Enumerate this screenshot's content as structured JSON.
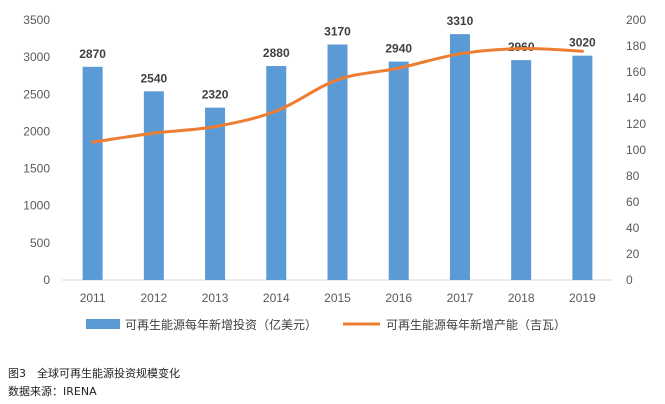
{
  "colors": {
    "bar": "#5b9bd5",
    "line": "#ed7d31",
    "axis": "#d9d9d9",
    "text": "#595959"
  },
  "chart_data": {
    "type": "bar",
    "categories": [
      "2011",
      "2012",
      "2013",
      "2014",
      "2015",
      "2016",
      "2017",
      "2018",
      "2019"
    ],
    "series": [
      {
        "name": "可再生能源每年新增投资（亿美元）",
        "type": "bar",
        "axis": "left",
        "values": [
          2870,
          2540,
          2320,
          2880,
          3170,
          2940,
          3310,
          2960,
          3020
        ]
      },
      {
        "name": "可再生能源每年新增产能（吉瓦）",
        "type": "line",
        "axis": "right",
        "values": [
          106,
          113,
          118,
          130,
          154,
          163,
          174,
          178,
          176
        ]
      }
    ],
    "y_left": {
      "min": 0,
      "max": 3500,
      "step": 500
    },
    "y_right": {
      "min": 0,
      "max": 200,
      "step": 20
    },
    "data_labels": [
      "2870",
      "2540",
      "2320",
      "2880",
      "3170",
      "2940",
      "3310",
      "2960",
      "3020"
    ],
    "grid": false,
    "legend_position": "bottom"
  },
  "caption": {
    "figure": "图3　全球可再生能源投资规模变化",
    "source": "数据来源：IRENA"
  }
}
